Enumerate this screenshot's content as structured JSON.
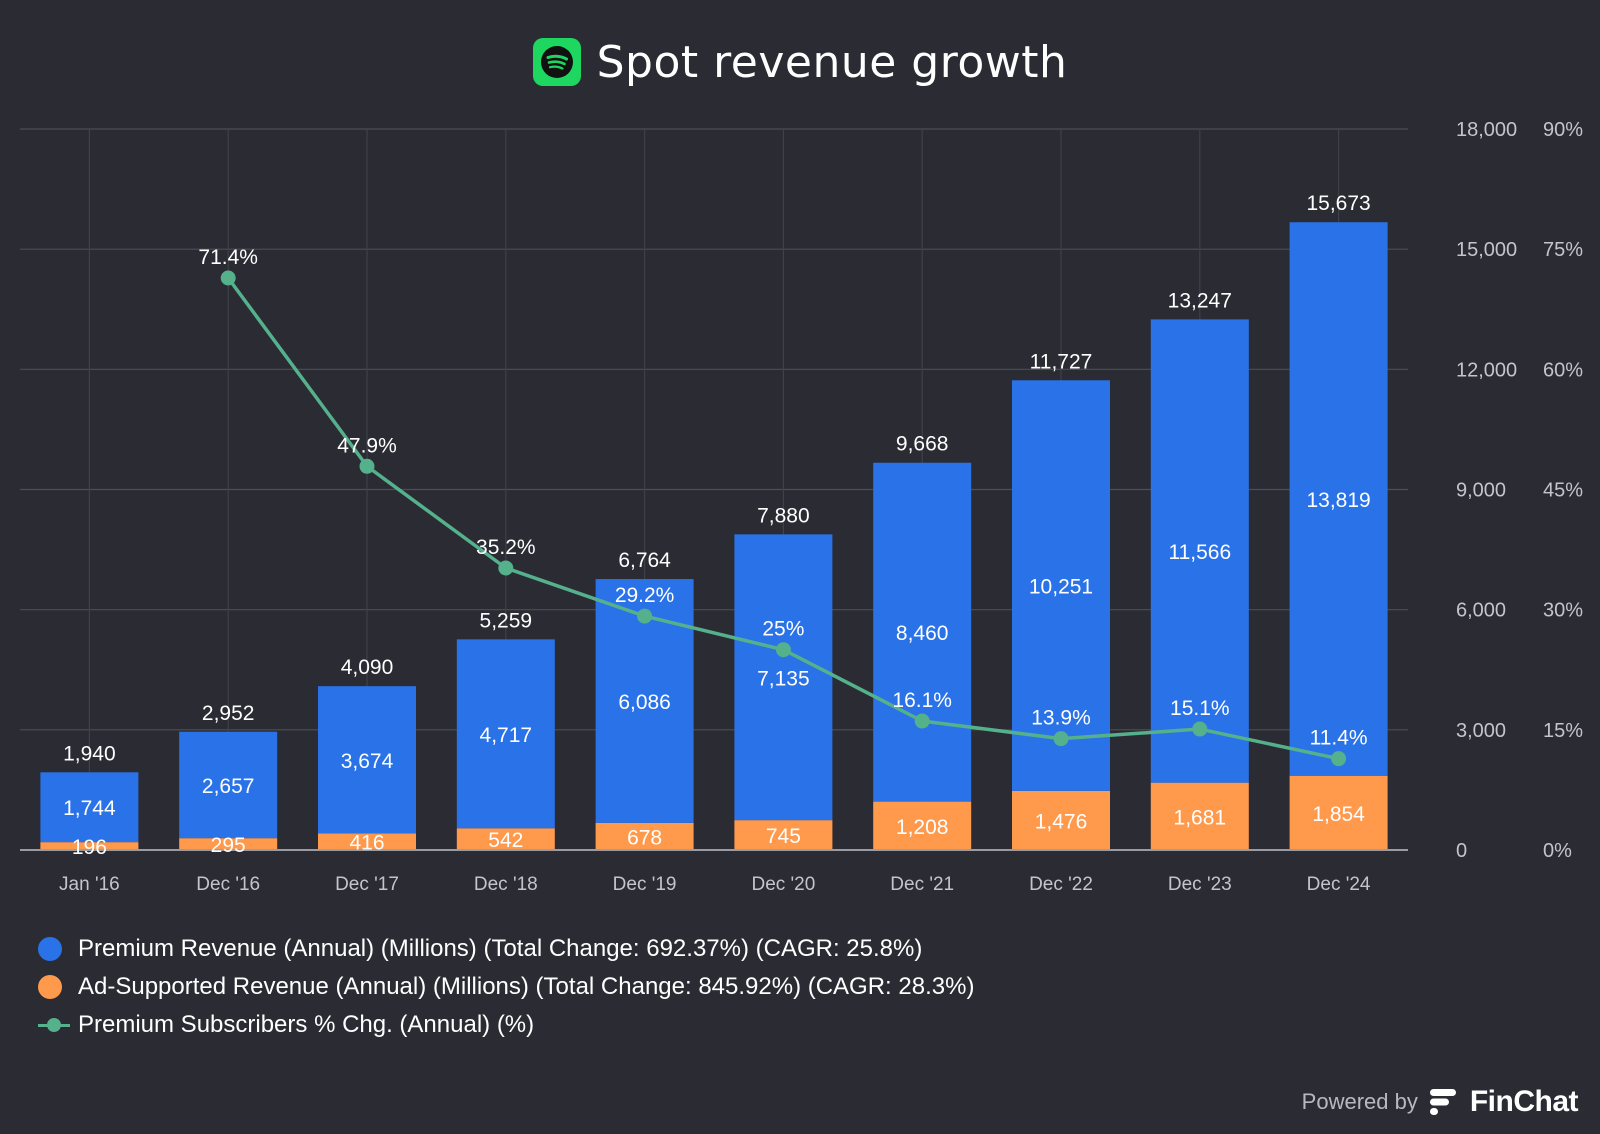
{
  "header": {
    "title": "Spot revenue growth",
    "logo_icon": "spotify-logo-icon",
    "logo_color": "#1ed760"
  },
  "chart_data": {
    "type": "bar",
    "stacked": true,
    "categories": [
      "Jan '16",
      "Dec '16",
      "Dec '17",
      "Dec '18",
      "Dec '19",
      "Dec '20",
      "Dec '21",
      "Dec '22",
      "Dec '23",
      "Dec '24"
    ],
    "series": [
      {
        "name": "Ad-Supported Revenue (Annual) (Millions) (Total Change: 845.92%) (CAGR: 28.3%)",
        "type": "bar",
        "axis": "left",
        "color": "#ff9a4d",
        "values": [
          196,
          295,
          416,
          542,
          678,
          745,
          1208,
          1476,
          1681,
          1854
        ],
        "labels": [
          "196",
          "295",
          "416",
          "542",
          "678",
          "745",
          "1,208",
          "1,476",
          "1,681",
          "1,854"
        ]
      },
      {
        "name": "Premium Revenue (Annual) (Millions) (Total Change: 692.37%) (CAGR: 25.8%)",
        "type": "bar",
        "axis": "left",
        "color": "#2a72e8",
        "values": [
          1744,
          2657,
          3674,
          4717,
          6086,
          7135,
          8460,
          10251,
          11566,
          13819
        ],
        "labels": [
          "1,744",
          "2,657",
          "3,674",
          "4,717",
          "6,086",
          "7,135",
          "8,460",
          "10,251",
          "11,566",
          "13,819"
        ]
      },
      {
        "name": "Premium Subscribers % Chg. (Annual) (%)",
        "type": "line",
        "axis": "right",
        "color": "#55b08c",
        "values": [
          null,
          71.4,
          47.9,
          35.2,
          29.2,
          25,
          16.1,
          13.9,
          15.1,
          11.4
        ],
        "labels": [
          "",
          "71.4%",
          "47.9%",
          "35.2%",
          "29.2%",
          "25%",
          "16.1%",
          "13.9%",
          "15.1%",
          "11.4%"
        ]
      }
    ],
    "totals": [
      1940,
      2952,
      4090,
      5259,
      6764,
      7880,
      9668,
      11727,
      13247,
      15673
    ],
    "total_labels": [
      "1,940",
      "2,952",
      "4,090",
      "5,259",
      "6,764",
      "7,880",
      "9,668",
      "11,727",
      "13,247",
      "15,673"
    ],
    "y_left": {
      "range": [
        0,
        18000
      ],
      "ticks": [
        0,
        3000,
        6000,
        9000,
        12000,
        15000,
        18000
      ],
      "tick_labels": [
        "0",
        "3,000",
        "6,000",
        "9,000",
        "12,000",
        "15,000",
        "18,000"
      ]
    },
    "y_right": {
      "range": [
        0,
        90
      ],
      "ticks": [
        0,
        15,
        30,
        45,
        60,
        75,
        90
      ],
      "tick_labels": [
        "0%",
        "15%",
        "30%",
        "45%",
        "60%",
        "75%",
        "90%"
      ]
    },
    "grid": true,
    "legend_position": "bottom-left"
  },
  "legend": {
    "items": [
      {
        "label": "Premium Revenue (Annual) (Millions) (Total Change: 692.37%) (CAGR: 25.8%)",
        "color": "#2a72e8",
        "marker": "dot"
      },
      {
        "label": "Ad-Supported Revenue (Annual) (Millions) (Total Change: 845.92%) (CAGR: 28.3%)",
        "color": "#ff9a4d",
        "marker": "dot"
      },
      {
        "label": "Premium Subscribers % Chg. (Annual) (%)",
        "color": "#55b08c",
        "marker": "line"
      }
    ]
  },
  "footer": {
    "powered_by": "Powered by",
    "brand": "FinChat",
    "brand_icon": "finchat-logo-icon"
  }
}
